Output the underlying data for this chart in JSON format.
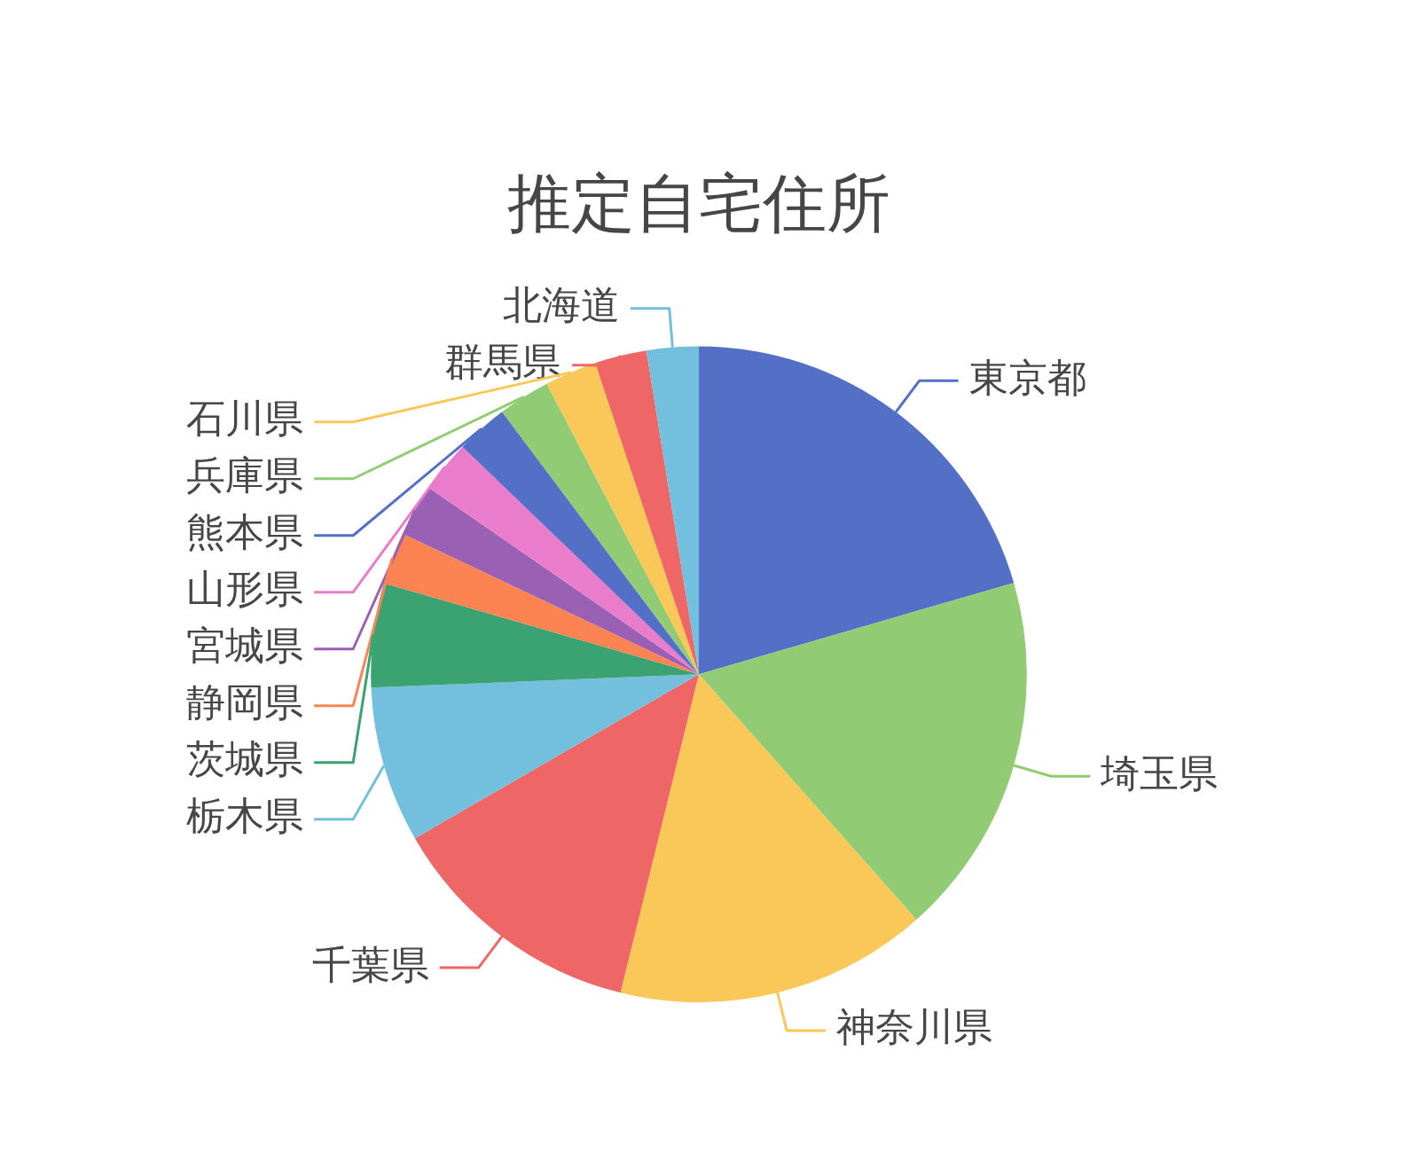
{
  "chart_data": {
    "type": "pie",
    "title": "推定自宅住所",
    "categories": [
      "東京都",
      "埼玉県",
      "神奈川県",
      "千葉県",
      "栃木県",
      "茨城県",
      "静岡県",
      "宮城県",
      "山形県",
      "熊本県",
      "兵庫県",
      "石川県",
      "群馬県",
      "北海道"
    ],
    "values": [
      20.51,
      17.95,
      15.38,
      12.82,
      7.69,
      5.13,
      2.57,
      2.57,
      2.57,
      2.57,
      2.56,
      2.56,
      2.56,
      2.56
    ],
    "colors": [
      "#5470c6",
      "#91cc75",
      "#fac858",
      "#ee6666",
      "#73c0de",
      "#3ba272",
      "#fc8452",
      "#9a60b4",
      "#ea7ccc",
      "#5470c6",
      "#91cc75",
      "#fac858",
      "#ee6666",
      "#73c0de"
    ],
    "legend": false
  }
}
